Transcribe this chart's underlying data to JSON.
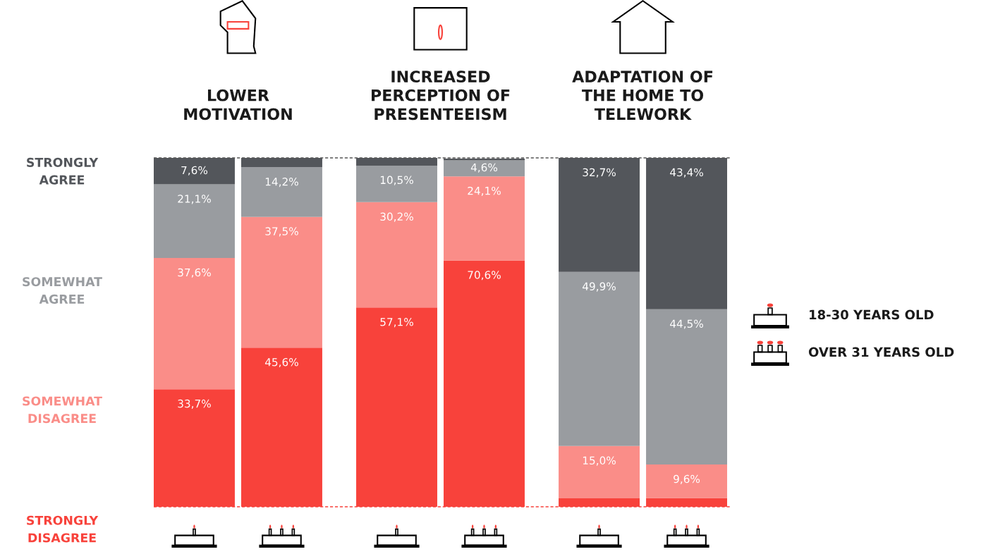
{
  "chart_data": {
    "type": "bar",
    "stacked": true,
    "categories": [
      null,
      null,
      null,
      null,
      null,
      null
    ],
    "series": [
      {
        "name": "STRONGLY DISAGREE",
        "color": "#f8423b",
        "values": [
          33.7,
          45.6,
          57.1,
          70.6,
          2.4,
          2.5
        ],
        "value_labels": [
          "33,7%",
          "45,6%",
          "57,1%",
          "70,6%",
          null,
          null
        ]
      },
      {
        "name": "SOMEWHAT DISAGREE",
        "color": "#fa8d88",
        "values": [
          37.6,
          37.5,
          30.2,
          24.1,
          15.0,
          9.6
        ],
        "value_labels": [
          "37,6%",
          "37,5%",
          "30,2%",
          "24,1%",
          "15,0%",
          "9,6%"
        ]
      },
      {
        "name": "SOMEWHAT AGREE",
        "color": "#999ca0",
        "values": [
          21.1,
          14.2,
          10.5,
          4.6,
          49.9,
          44.5
        ],
        "value_labels": [
          "21,1%",
          "14,2%",
          "10,5%",
          "4,6%",
          "49,9%",
          "44,5%"
        ]
      },
      {
        "name": "STRONGLY AGREE",
        "color": "#53565b",
        "values": [
          7.6,
          2.7,
          2.2,
          0.5,
          32.7,
          43.4
        ],
        "value_labels": [
          "7,6%",
          null,
          null,
          null,
          "32,7%",
          "43,4%"
        ]
      }
    ],
    "ylim": [
      0,
      100
    ],
    "legend": false,
    "ref_lines": [
      {
        "axis": "y",
        "value": 100,
        "label": null,
        "color": "#555555",
        "line_style": "dashed"
      },
      {
        "axis": "y",
        "value": 0,
        "label": null,
        "color": "#f8423b",
        "line_style": "dashed"
      }
    ],
    "annotations": [
      "LOWER\nMOTIVATION",
      "INCREASED\nPERCEPTION OF\nPRESENTEEISM",
      "ADAPTATION OF\nTHE HOME TO\nTELEWORK",
      "18-30 YEARS OLD",
      "OVER 31 YEARS OLD"
    ]
  }
}
